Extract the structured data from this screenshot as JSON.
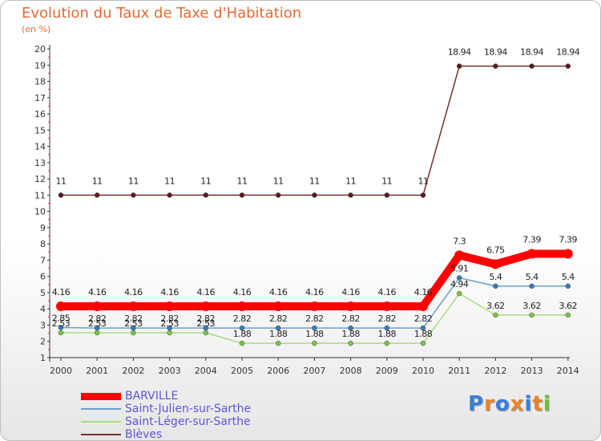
{
  "title": "Evolution du Taux de Taxe d'Habitation",
  "subtitle": "(en %)",
  "logo": {
    "text": "Proxiti",
    "letters": [
      "P",
      "r",
      "o",
      "x",
      "i",
      "t",
      "i"
    ],
    "colors": [
      "#3a7fd6",
      "#e8842a",
      "#3a7fd6",
      "#e8842a",
      "#3a7fd6",
      "#e8842a",
      "#6bbf3a"
    ]
  },
  "chart_data": {
    "type": "line",
    "title": "Evolution du Taux de Taxe d'Habitation",
    "ylabel": "(en %)",
    "xlabel": "",
    "ylim": [
      1,
      20
    ],
    "yticks": [
      1,
      2,
      3,
      4,
      5,
      6,
      7,
      8,
      9,
      10,
      11,
      12,
      13,
      14,
      15,
      16,
      17,
      18,
      19,
      20
    ],
    "x": [
      "2000",
      "2001",
      "2002",
      "2003",
      "2004",
      "2005",
      "2006",
      "2007",
      "2008",
      "2009",
      "2010",
      "2011",
      "2012",
      "2013",
      "2014"
    ],
    "legend_position": "bottom-left",
    "series": [
      {
        "name": "BARVILLE",
        "color": "#ff0000",
        "marker": "#ff0000",
        "style": "thick",
        "values": [
          4.16,
          4.16,
          4.16,
          4.16,
          4.16,
          4.16,
          4.16,
          4.16,
          4.16,
          4.16,
          4.16,
          7.3,
          6.75,
          7.39,
          7.39
        ]
      },
      {
        "name": "Saint-Julien-sur-Sarthe",
        "color": "#6a9fcf",
        "marker": "#3a7ab8",
        "style": "thin",
        "values": [
          2.85,
          2.82,
          2.82,
          2.82,
          2.82,
          2.82,
          2.82,
          2.82,
          2.82,
          2.82,
          2.82,
          5.91,
          5.4,
          5.4,
          5.4
        ]
      },
      {
        "name": "Saint-Léger-sur-Sarthe",
        "color": "#a8dc84",
        "marker": "#7cc44a",
        "style": "thin",
        "values": [
          2.53,
          2.53,
          2.53,
          2.53,
          2.53,
          1.88,
          1.88,
          1.88,
          1.88,
          1.88,
          1.88,
          4.94,
          3.62,
          3.62,
          3.62
        ]
      },
      {
        "name": "Blèves",
        "color": "#7a3030",
        "marker": "#5a1a1a",
        "style": "thin",
        "values": [
          11,
          11,
          11,
          11,
          11,
          11,
          11,
          11,
          11,
          11,
          11,
          18.94,
          18.94,
          18.94,
          18.94
        ]
      }
    ]
  }
}
